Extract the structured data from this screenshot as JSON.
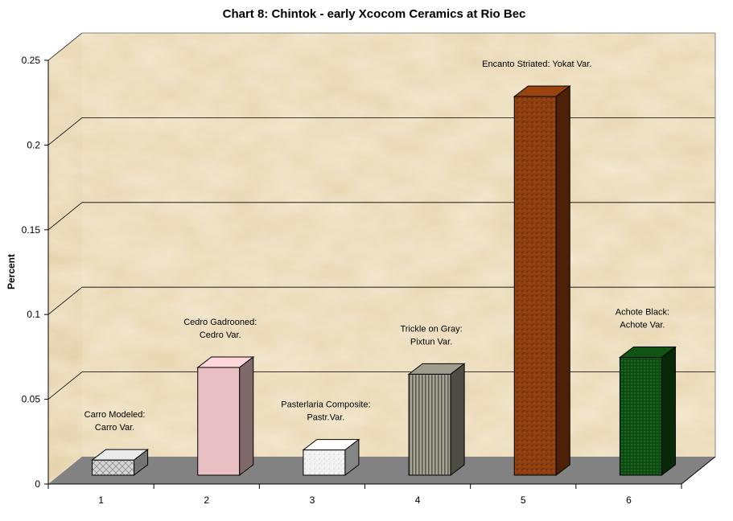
{
  "chart_data": {
    "type": "bar",
    "title": "Chart 8: Chintok - early Xcocom Ceramics at Rio Bec",
    "xlabel": "",
    "ylabel": "Percent",
    "ylim": [
      0,
      0.25
    ],
    "yticks": [
      "0",
      "0.05",
      "0.1",
      "0.15",
      "0.2",
      "0.25"
    ],
    "grid": true,
    "categories": [
      "1",
      "2",
      "3",
      "4",
      "5",
      "6"
    ],
    "values": [
      0.009,
      0.064,
      0.015,
      0.06,
      0.225,
      0.07
    ],
    "bars": [
      {
        "category": "1",
        "value": 0.009,
        "label": [
          "Carro Modeled:",
          "Carro Var."
        ],
        "color": "#d2d2d2",
        "pattern": "diamond"
      },
      {
        "category": "2",
        "value": 0.064,
        "label": [
          "Cedro Gadrooned:",
          "Cedro Var."
        ],
        "color": "#e8bfc3",
        "pattern": "solid"
      },
      {
        "category": "3",
        "value": 0.015,
        "label": [
          "Pasterlaria Composite:",
          "Pastr.Var."
        ],
        "color": "#f2f2f2",
        "pattern": "speckle"
      },
      {
        "category": "4",
        "value": 0.06,
        "label": [
          "Trickle on Gray:",
          "Pixtun Var."
        ],
        "color": "#8e8c7c",
        "pattern": "vstripe"
      },
      {
        "category": "5",
        "value": 0.225,
        "label": [
          "Encanto Striated: Yokat Var."
        ],
        "color": "#8a3c0c",
        "pattern": "dark-speckle"
      },
      {
        "category": "6",
        "value": 0.07,
        "label": [
          "Achote Black:",
          "Achote Var."
        ],
        "color": "#0e4a10",
        "pattern": "dots"
      }
    ]
  }
}
